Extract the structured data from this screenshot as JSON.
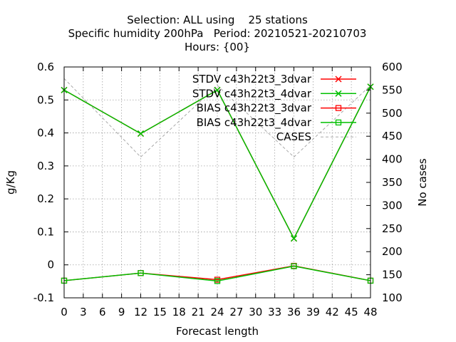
{
  "chart_data": {
    "type": "line",
    "title_lines": [
      "Selection: ALL using    25 stations",
      "Specific humidity 200hPa   Period: 20210521-20210703",
      "Hours: {00}"
    ],
    "xlabel": "Forecast length",
    "ylabel": "g/Kg",
    "y2label": "No cases",
    "x_ticks": [
      0,
      3,
      6,
      9,
      12,
      15,
      18,
      21,
      24,
      27,
      30,
      33,
      36,
      39,
      42,
      45,
      48
    ],
    "xlim": [
      0,
      48
    ],
    "ylim": [
      -0.1,
      0.6
    ],
    "y_ticks": [
      -0.1,
      0,
      0.1,
      0.2,
      0.3,
      0.4,
      0.5,
      0.6
    ],
    "y_tick_labels": [
      "-0.1",
      "0",
      "0.1",
      "0.2",
      "0.3",
      "0.4",
      "0.5",
      "0.6"
    ],
    "y2lim": [
      100,
      600
    ],
    "y2_ticks": [
      100,
      150,
      200,
      250,
      300,
      350,
      400,
      450,
      500,
      550,
      600
    ],
    "grid": true,
    "legend_position": "top-right",
    "x": [
      0,
      12,
      24,
      36,
      48
    ],
    "series": [
      {
        "name": "STDV c43h22t3_3dvar",
        "axis": "y",
        "color": "#ff0000",
        "marker": "x",
        "values": [
          0.53,
          0.398,
          0.53,
          0.08,
          0.54
        ]
      },
      {
        "name": "STDV c43h22t3_4dvar",
        "axis": "y",
        "color": "#00c000",
        "marker": "x",
        "values": [
          0.53,
          0.398,
          0.53,
          0.08,
          0.54
        ]
      },
      {
        "name": "BIAS c43h22t3_3dvar",
        "axis": "y",
        "color": "#ff0000",
        "marker": "square",
        "values": [
          -0.048,
          -0.025,
          -0.045,
          -0.003,
          -0.048
        ]
      },
      {
        "name": "BIAS c43h22t3_4dvar",
        "axis": "y",
        "color": "#00c000",
        "marker": "square",
        "values": [
          -0.048,
          -0.025,
          -0.049,
          -0.004,
          -0.048
        ]
      },
      {
        "name": "CASES",
        "axis": "y2",
        "color": "#a0a0a0",
        "marker": "none",
        "dashed": true,
        "values": [
          575,
          405,
          560,
          405,
          560
        ]
      }
    ]
  }
}
